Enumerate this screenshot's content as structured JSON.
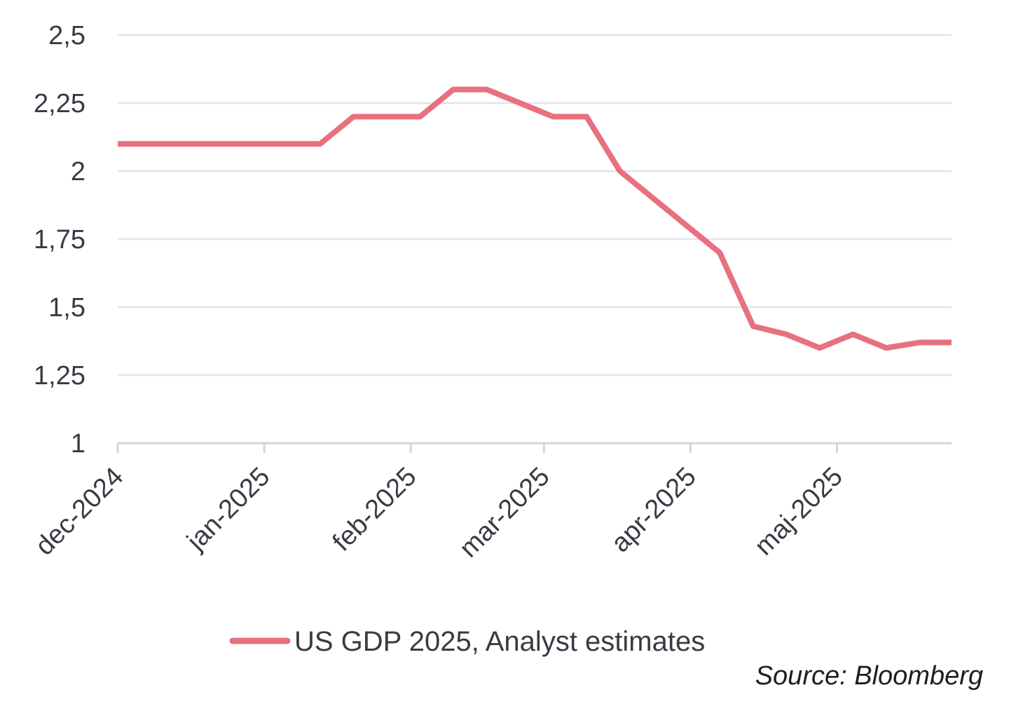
{
  "chart_data": {
    "type": "line",
    "title": "",
    "xlabel": "",
    "ylabel": "",
    "ylim": [
      1,
      2.5
    ],
    "y_ticks": [
      1,
      1.25,
      1.5,
      1.75,
      2,
      2.25,
      2.5
    ],
    "y_tick_labels": [
      "1",
      "1,25",
      "1,5",
      "1,75",
      "2",
      "2,25",
      "2,5"
    ],
    "x_ticks": [
      0,
      5.5,
      11,
      16,
      21.5,
      27
    ],
    "x_tick_labels": [
      "dec-2024",
      "jan-2025",
      "feb-2025",
      "mar-2025",
      "apr-2025",
      "maj-2025"
    ],
    "xlim": [
      0,
      31.3
    ],
    "grid": true,
    "legend_position": "bottom-center",
    "series": [
      {
        "name": "US GDP 2025, Analyst estimates",
        "color": "#e8707f",
        "x": [
          0,
          1.25,
          2.5,
          3.75,
          5,
          6.25,
          7.6,
          8.85,
          10.1,
          11.35,
          12.6,
          13.85,
          15.1,
          16.35,
          17.6,
          18.85,
          20.1,
          21.35,
          22.6,
          23.85,
          25.1,
          26.35,
          27.6,
          28.85,
          30.1,
          31.3
        ],
        "values": [
          2.1,
          2.1,
          2.1,
          2.1,
          2.1,
          2.1,
          2.1,
          2.2,
          2.2,
          2.2,
          2.3,
          2.3,
          2.25,
          2.2,
          2.2,
          2.0,
          1.9,
          1.8,
          1.7,
          1.43,
          1.4,
          1.35,
          1.4,
          1.35,
          1.37,
          1.37
        ]
      }
    ],
    "source": "Source: Bloomberg"
  },
  "colors": {
    "grid": "#e3e3ea",
    "axis": "#d4d4dc",
    "text": "#3a3a44",
    "line": "#e8707f"
  }
}
